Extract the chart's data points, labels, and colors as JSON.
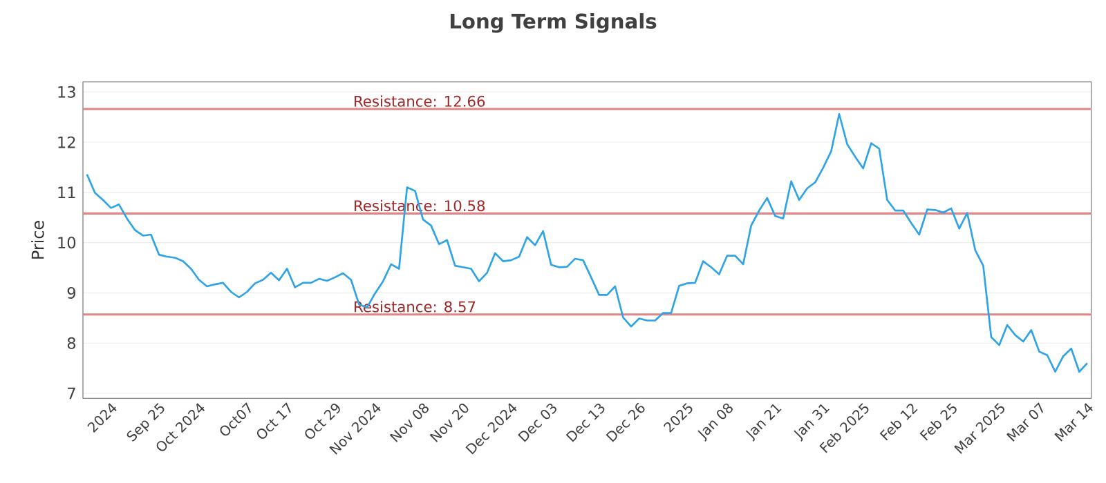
{
  "chart_data": {
    "type": "line",
    "title": "Long Term Signals",
    "ylabel": "Price",
    "categories": [
      null,
      null,
      null,
      "2024",
      null,
      null,
      null,
      null,
      null,
      "Sep 25",
      null,
      null,
      null,
      null,
      "Oct 2024",
      null,
      null,
      null,
      null,
      null,
      "Oct07",
      null,
      null,
      null,
      null,
      "Oct 17",
      null,
      null,
      null,
      null,
      null,
      "Oct 29",
      null,
      null,
      null,
      null,
      "Nov 2024",
      null,
      null,
      null,
      null,
      null,
      "Nov 08",
      null,
      null,
      null,
      null,
      "Nov 20",
      null,
      null,
      null,
      null,
      null,
      "Dec 2024",
      null,
      null,
      null,
      null,
      "Dec 03",
      null,
      null,
      null,
      null,
      null,
      "Dec 13",
      null,
      null,
      null,
      null,
      "Dec 26",
      null,
      null,
      null,
      null,
      null,
      "2025",
      null,
      null,
      null,
      null,
      "Jan 08",
      null,
      null,
      null,
      null,
      null,
      "Jan 21",
      null,
      null,
      null,
      null,
      null,
      "Jan 31",
      null,
      null,
      null,
      null,
      "Feb 2025",
      null,
      null,
      null,
      null,
      null,
      "Feb 12",
      null,
      null,
      null,
      null,
      "Feb 25",
      null,
      null,
      null,
      null,
      null,
      "Mar 2025",
      null,
      null,
      null,
      null,
      "Mar 07",
      null,
      null,
      null,
      null,
      null,
      "Mar 14"
    ],
    "series": [
      {
        "color": "#2ea3e6",
        "values": [
          11.36,
          10.99,
          10.85,
          10.69,
          10.76,
          10.48,
          10.25,
          10.14,
          10.16,
          9.76,
          9.72,
          9.7,
          9.63,
          9.48,
          9.26,
          9.13,
          9.17,
          9.2,
          9.02,
          8.91,
          9.02,
          9.19,
          9.26,
          9.4,
          9.25,
          9.48,
          9.11,
          9.2,
          9.2,
          9.28,
          9.24,
          9.31,
          9.39,
          9.26,
          8.77,
          8.71,
          8.99,
          9.23,
          9.57,
          9.48,
          11.1,
          11.03,
          10.46,
          10.34,
          9.97,
          10.05,
          9.54,
          9.51,
          9.48,
          9.23,
          9.4,
          9.79,
          9.63,
          9.65,
          9.72,
          10.11,
          9.95,
          10.23,
          9.56,
          9.51,
          9.52,
          9.68,
          9.65,
          9.31,
          8.96,
          8.96,
          9.13,
          8.51,
          8.33,
          8.49,
          8.45,
          8.45,
          8.6,
          8.6,
          9.14,
          9.19,
          9.2,
          9.63,
          9.51,
          9.37,
          9.74,
          9.74,
          9.57,
          10.34,
          10.64,
          10.89,
          10.53,
          10.48,
          11.22,
          10.85,
          11.08,
          11.2,
          11.49,
          11.82,
          12.56,
          11.96,
          11.71,
          11.48,
          11.98,
          11.87,
          10.85,
          10.64,
          10.64,
          10.39,
          10.16,
          10.66,
          10.65,
          10.6,
          10.68,
          10.28,
          10.59,
          9.85,
          9.54,
          8.12,
          7.96,
          8.36,
          8.16,
          8.03,
          8.26,
          7.83,
          7.76,
          7.43,
          7.74,
          7.89,
          7.43,
          7.6
        ]
      }
    ],
    "ylim": [
      6.9,
      13.2
    ],
    "yticks": [
      7,
      8,
      9,
      10,
      11,
      12,
      13
    ],
    "grid": "y",
    "ref_lines": [
      {
        "axis": "y",
        "value": 12.66,
        "label": "Resistance: 12.66",
        "color": "#e08585"
      },
      {
        "axis": "y",
        "value": 10.58,
        "label": "Resistance: 10.58",
        "color": "#e08585"
      },
      {
        "axis": "y",
        "value": 8.57,
        "label": "Resistance: 8.57",
        "color": "#e08585"
      }
    ]
  }
}
